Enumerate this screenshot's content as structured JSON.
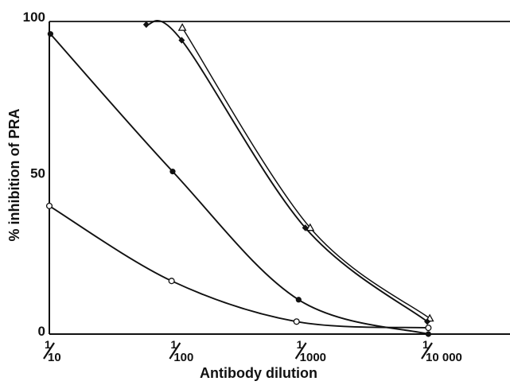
{
  "chart_data": {
    "type": "line",
    "title": "",
    "xlabel": "Antibody dilution",
    "ylabel": "% inhibition of PRA",
    "x_scale": "log",
    "xlim": [
      0.0001,
      0.1
    ],
    "ylim": [
      0,
      100
    ],
    "grid": false,
    "legend": "none",
    "x_ticks": [
      {
        "value": 0.1,
        "num": "1",
        "den": "10"
      },
      {
        "value": 0.01,
        "num": "1",
        "den": "100"
      },
      {
        "value": 0.001,
        "num": "1",
        "den": "1000"
      },
      {
        "value": 0.0001,
        "num": "1",
        "den": "10 000"
      }
    ],
    "y_ticks": [
      {
        "value": 0,
        "label": "0"
      },
      {
        "value": 50,
        "label": "50"
      },
      {
        "value": 100,
        "label": "100"
      }
    ],
    "series": [
      {
        "marker": "open-triangle",
        "points": [
          {
            "x": 0.0088,
            "y": 98
          },
          {
            "x": 0.00085,
            "y": 34
          },
          {
            "x": 9.55e-05,
            "y": 5
          }
        ]
      },
      {
        "marker": "filled-diamond",
        "points": [
          {
            "x": 0.017,
            "y": 99
          },
          {
            "x": 0.0089,
            "y": 94
          },
          {
            "x": 0.00093,
            "y": 34
          },
          {
            "x": 0.0001,
            "y": 4
          }
        ]
      },
      {
        "marker": "filled-circle",
        "points": [
          {
            "x": 0.098,
            "y": 96
          },
          {
            "x": 0.0105,
            "y": 52
          },
          {
            "x": 0.00105,
            "y": 11
          },
          {
            "x": 9.8e-05,
            "y": 0
          }
        ]
      },
      {
        "marker": "open-circle",
        "points": [
          {
            "x": 0.1,
            "y": 41
          },
          {
            "x": 0.0107,
            "y": 17
          },
          {
            "x": 0.00109,
            "y": 4
          },
          {
            "x": 9.8e-05,
            "y": 2
          }
        ]
      }
    ]
  }
}
